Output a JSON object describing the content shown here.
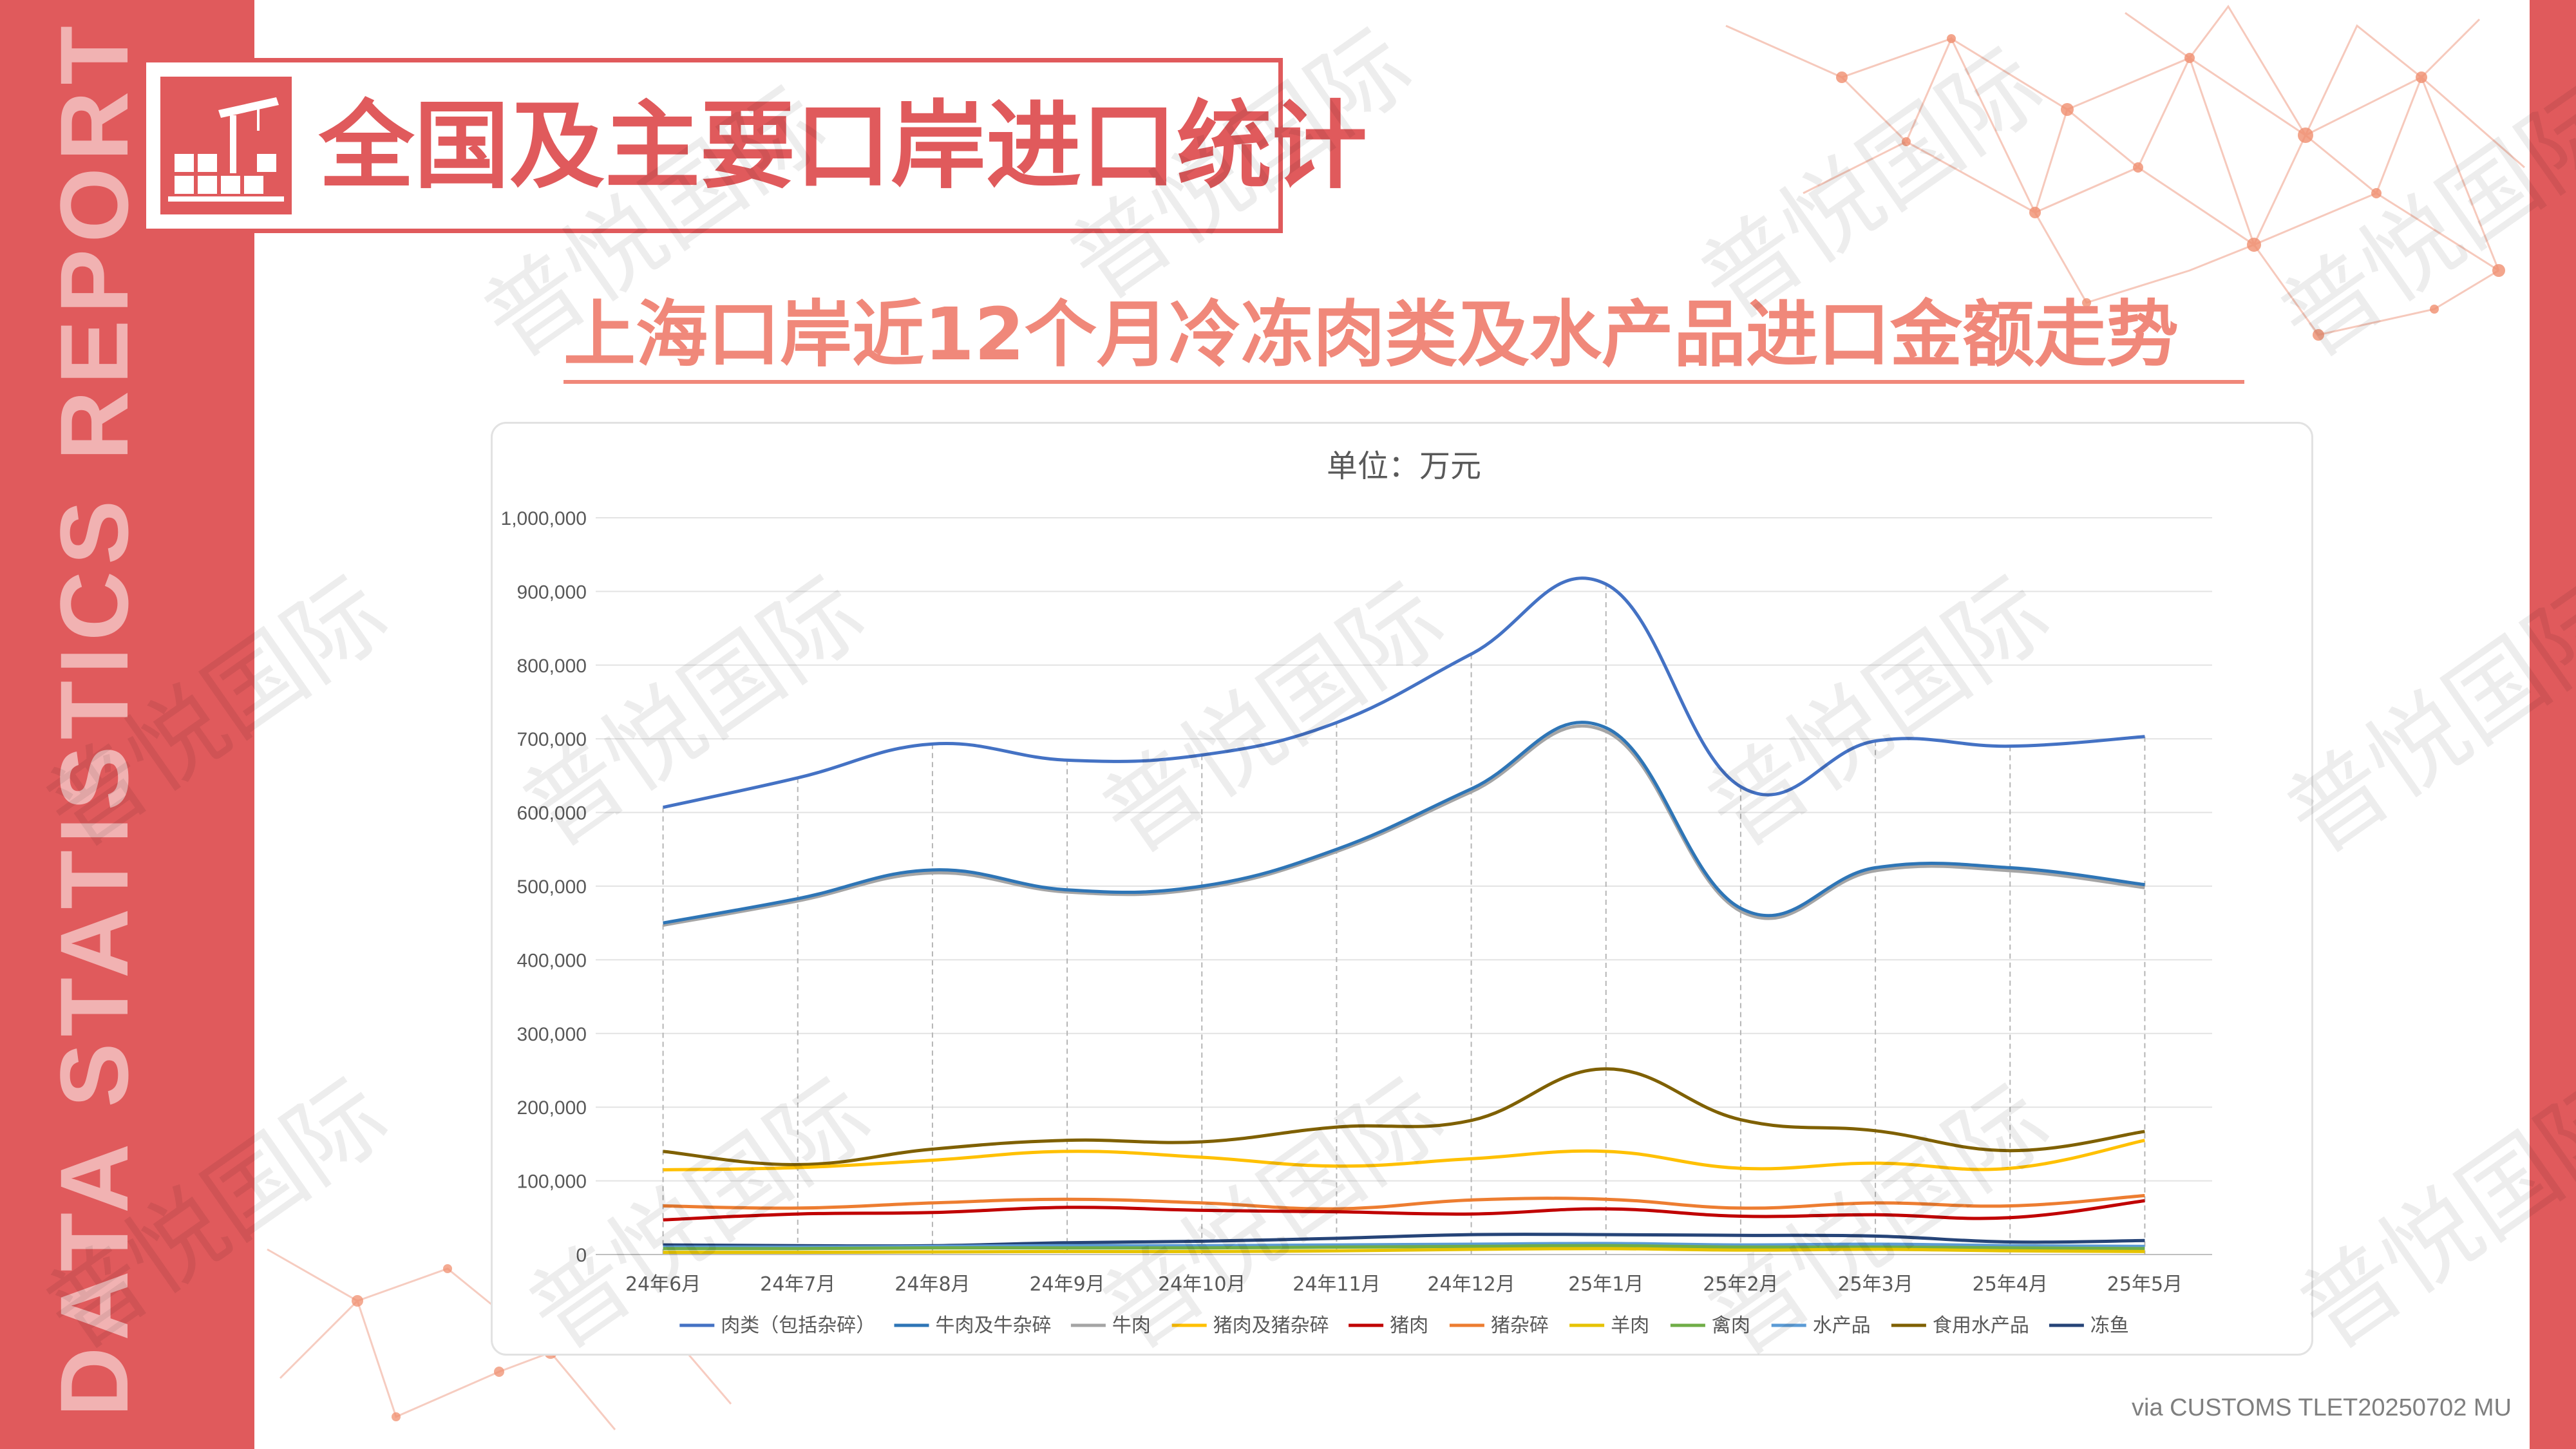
{
  "side_label": "DATA STATISTICS REPORT",
  "header": {
    "title": "全国及主要口岸进口统计",
    "icon": "port-crane-icon"
  },
  "subtitle": "上海口岸近12个月冷冻肉类及水产品进口金额走势",
  "watermark": "普悦国际",
  "source": "via CUSTOMS TLET20250702 MU",
  "colors": {
    "accent": "#e05a5c",
    "subtitle": "#f0887a"
  },
  "chart_data": {
    "type": "line",
    "title": "单位：万元",
    "xlabel": "",
    "ylabel": "",
    "ylim": [
      0,
      1000000
    ],
    "yticks": [
      0,
      100000,
      200000,
      300000,
      400000,
      500000,
      600000,
      700000,
      800000,
      900000,
      1000000
    ],
    "ytick_labels": [
      "0",
      "100,000",
      "200,000",
      "300,000",
      "400,000",
      "500,000",
      "600,000",
      "700,000",
      "800,000",
      "900,000",
      "1,000,000"
    ],
    "categories": [
      "24年6月",
      "24年7月",
      "24年8月",
      "24年9月",
      "24年10月",
      "24年11月",
      "24年12月",
      "25年1月",
      "25年2月",
      "25年3月",
      "25年4月",
      "25年5月"
    ],
    "grid": "horizontal",
    "legend": "bottom",
    "smooth": true,
    "series": [
      {
        "name": "肉类（包括杂碎）",
        "color": "#4472c4",
        "values": [
          607000,
          647000,
          693000,
          671000,
          678000,
          722000,
          815000,
          910000,
          635000,
          697000,
          690000,
          703000
        ]
      },
      {
        "name": "牛肉及牛杂碎",
        "color": "#2e75b6",
        "values": [
          450000,
          483000,
          522000,
          495000,
          500000,
          550000,
          632000,
          715000,
          470000,
          525000,
          525000,
          502000
        ]
      },
      {
        "name": "牛肉",
        "color": "#a5a5a5",
        "values": [
          447000,
          480000,
          518000,
          492000,
          497000,
          547000,
          628000,
          710000,
          466000,
          521000,
          521000,
          498000
        ]
      },
      {
        "name": "猪肉及猪杂碎",
        "color": "#ffc000",
        "values": [
          115000,
          118000,
          128000,
          140000,
          132000,
          120000,
          130000,
          140000,
          117000,
          124000,
          117000,
          155000
        ]
      },
      {
        "name": "猪肉",
        "color": "#c00000",
        "values": [
          47000,
          55000,
          57000,
          64000,
          60000,
          58000,
          55000,
          62000,
          52000,
          54000,
          50000,
          73000
        ]
      },
      {
        "name": "猪杂碎",
        "color": "#ed7d31",
        "values": [
          66000,
          63000,
          70000,
          75000,
          70000,
          62000,
          74000,
          75000,
          63000,
          70000,
          66000,
          80000
        ]
      },
      {
        "name": "羊肉",
        "color": "#e6c300",
        "values": [
          3000,
          3000,
          3500,
          4000,
          4000,
          5000,
          7000,
          8000,
          6000,
          7000,
          5000,
          4000
        ]
      },
      {
        "name": "禽肉",
        "color": "#70ad47",
        "values": [
          8000,
          8000,
          9000,
          9000,
          9000,
          10000,
          11000,
          12000,
          10000,
          10000,
          9000,
          8000
        ]
      },
      {
        "name": "水产品",
        "color": "#5b9bd5",
        "values": [
          10000,
          10000,
          11000,
          12000,
          12000,
          13000,
          14000,
          15000,
          13000,
          14000,
          12000,
          11000
        ]
      },
      {
        "name": "食用水产品",
        "color": "#7f6000",
        "values": [
          140000,
          122000,
          143000,
          155000,
          153000,
          173000,
          182000,
          252000,
          183000,
          168000,
          141000,
          167000
        ]
      },
      {
        "name": "冻鱼",
        "color": "#264478",
        "values": [
          13000,
          12000,
          12000,
          16000,
          18000,
          22000,
          27000,
          27000,
          26000,
          25000,
          17000,
          19000
        ]
      }
    ]
  }
}
